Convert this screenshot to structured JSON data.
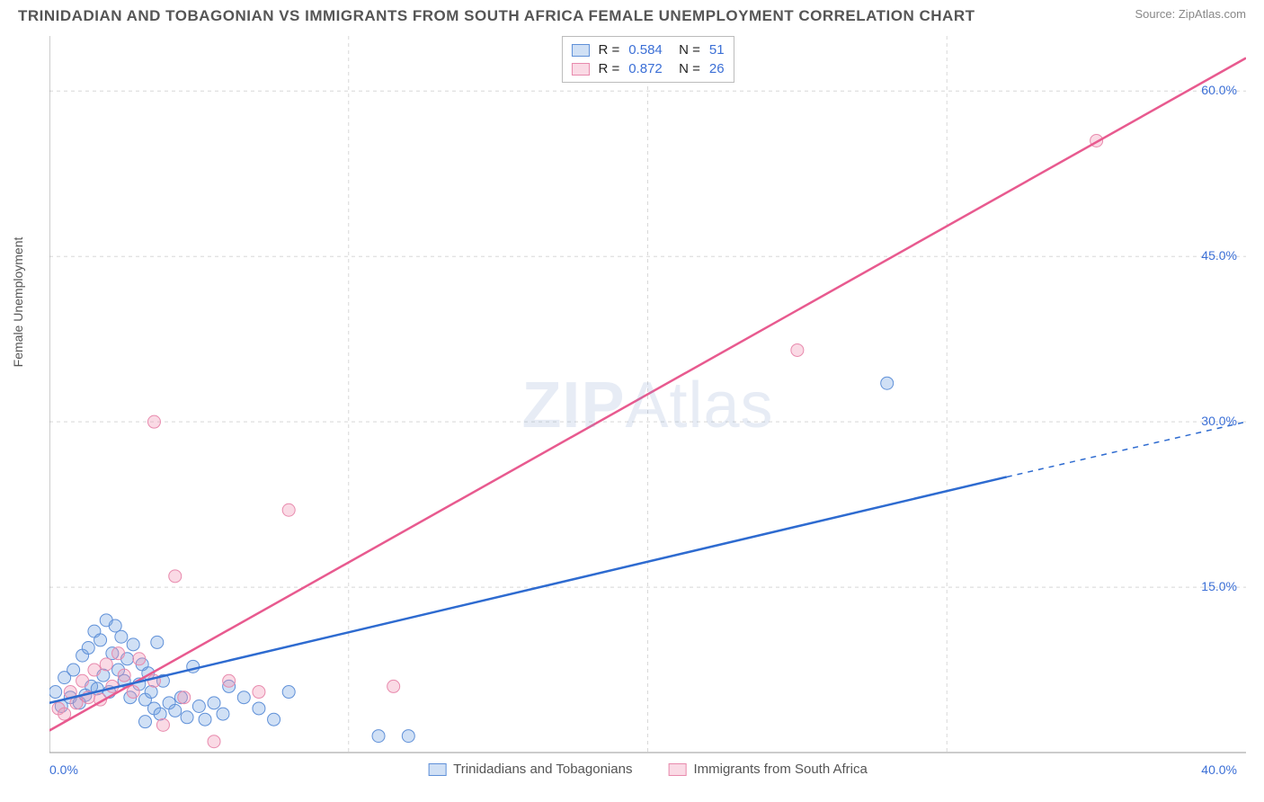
{
  "title": "TRINIDADIAN AND TOBAGONIAN VS IMMIGRANTS FROM SOUTH AFRICA FEMALE UNEMPLOYMENT CORRELATION CHART",
  "source": "Source: ZipAtlas.com",
  "watermark": "ZIPAtlas",
  "y_axis_label": "Female Unemployment",
  "chart": {
    "type": "scatter",
    "xlim": [
      0,
      40
    ],
    "ylim": [
      0,
      65
    ],
    "x_ticks": [
      0,
      40
    ],
    "x_tick_labels": [
      "0.0%",
      "40.0%"
    ],
    "y_ticks": [
      15,
      30,
      45,
      60
    ],
    "y_tick_labels": [
      "15.0%",
      "30.0%",
      "45.0%",
      "60.0%"
    ],
    "grid_color": "#d8d8d8",
    "grid_dash": "4,4",
    "background_color": "#ffffff",
    "axis_label_color": "#3b6fd6",
    "series": [
      {
        "name": "Trinidadians and Tobagonians",
        "color_fill": "rgba(120,165,225,0.35)",
        "color_stroke": "#5f90d8",
        "line_color": "#2e6bd0",
        "line_dash_color": "#2e6bd0",
        "marker_radius": 7,
        "R": "0.584",
        "N": "51",
        "regression": {
          "x1": 0,
          "y1": 4.5,
          "x2": 32,
          "y2": 25,
          "x2_dash": 40,
          "y2_dash": 30
        },
        "points": [
          [
            0.2,
            5.5
          ],
          [
            0.4,
            4.2
          ],
          [
            0.5,
            6.8
          ],
          [
            0.7,
            5.0
          ],
          [
            0.8,
            7.5
          ],
          [
            1.0,
            4.5
          ],
          [
            1.1,
            8.8
          ],
          [
            1.2,
            5.2
          ],
          [
            1.3,
            9.5
          ],
          [
            1.4,
            6.0
          ],
          [
            1.5,
            11.0
          ],
          [
            1.6,
            5.8
          ],
          [
            1.7,
            10.2
          ],
          [
            1.8,
            7.0
          ],
          [
            1.9,
            12.0
          ],
          [
            2.0,
            5.5
          ],
          [
            2.1,
            9.0
          ],
          [
            2.2,
            11.5
          ],
          [
            2.3,
            7.5
          ],
          [
            2.4,
            10.5
          ],
          [
            2.5,
            6.5
          ],
          [
            2.6,
            8.5
          ],
          [
            2.7,
            5.0
          ],
          [
            2.8,
            9.8
          ],
          [
            3.0,
            6.2
          ],
          [
            3.1,
            8.0
          ],
          [
            3.2,
            4.8
          ],
          [
            3.3,
            7.2
          ],
          [
            3.4,
            5.5
          ],
          [
            3.5,
            4.0
          ],
          [
            3.6,
            10.0
          ],
          [
            3.7,
            3.5
          ],
          [
            3.8,
            6.5
          ],
          [
            4.0,
            4.5
          ],
          [
            4.2,
            3.8
          ],
          [
            4.4,
            5.0
          ],
          [
            4.6,
            3.2
          ],
          [
            4.8,
            7.8
          ],
          [
            5.0,
            4.2
          ],
          [
            5.2,
            3.0
          ],
          [
            5.5,
            4.5
          ],
          [
            5.8,
            3.5
          ],
          [
            6.0,
            6.0
          ],
          [
            6.5,
            5.0
          ],
          [
            7.0,
            4.0
          ],
          [
            7.5,
            3.0
          ],
          [
            8.0,
            5.5
          ],
          [
            11.0,
            1.5
          ],
          [
            12.0,
            1.5
          ],
          [
            28.0,
            33.5
          ],
          [
            3.2,
            2.8
          ]
        ]
      },
      {
        "name": "Immigrants from South Africa",
        "color_fill": "rgba(240,150,180,0.35)",
        "color_stroke": "#e88aad",
        "line_color": "#e85a8f",
        "marker_radius": 7,
        "R": "0.872",
        "N": "26",
        "regression": {
          "x1": 0,
          "y1": 2.0,
          "x2": 40,
          "y2": 63
        },
        "points": [
          [
            0.3,
            4.0
          ],
          [
            0.5,
            3.5
          ],
          [
            0.7,
            5.5
          ],
          [
            0.9,
            4.5
          ],
          [
            1.1,
            6.5
          ],
          [
            1.3,
            5.0
          ],
          [
            1.5,
            7.5
          ],
          [
            1.7,
            4.8
          ],
          [
            1.9,
            8.0
          ],
          [
            2.1,
            6.0
          ],
          [
            2.3,
            9.0
          ],
          [
            2.5,
            7.0
          ],
          [
            2.8,
            5.5
          ],
          [
            3.0,
            8.5
          ],
          [
            3.5,
            6.5
          ],
          [
            3.8,
            2.5
          ],
          [
            4.2,
            16.0
          ],
          [
            4.5,
            5.0
          ],
          [
            5.5,
            1.0
          ],
          [
            6.0,
            6.5
          ],
          [
            7.0,
            5.5
          ],
          [
            8.0,
            22.0
          ],
          [
            11.5,
            6.0
          ],
          [
            3.5,
            30.0
          ],
          [
            25.0,
            36.5
          ],
          [
            35.0,
            55.5
          ]
        ]
      }
    ]
  },
  "legend": {
    "series1_label": "Trinidadians and Tobagonians",
    "series2_label": "Immigrants from South Africa"
  }
}
